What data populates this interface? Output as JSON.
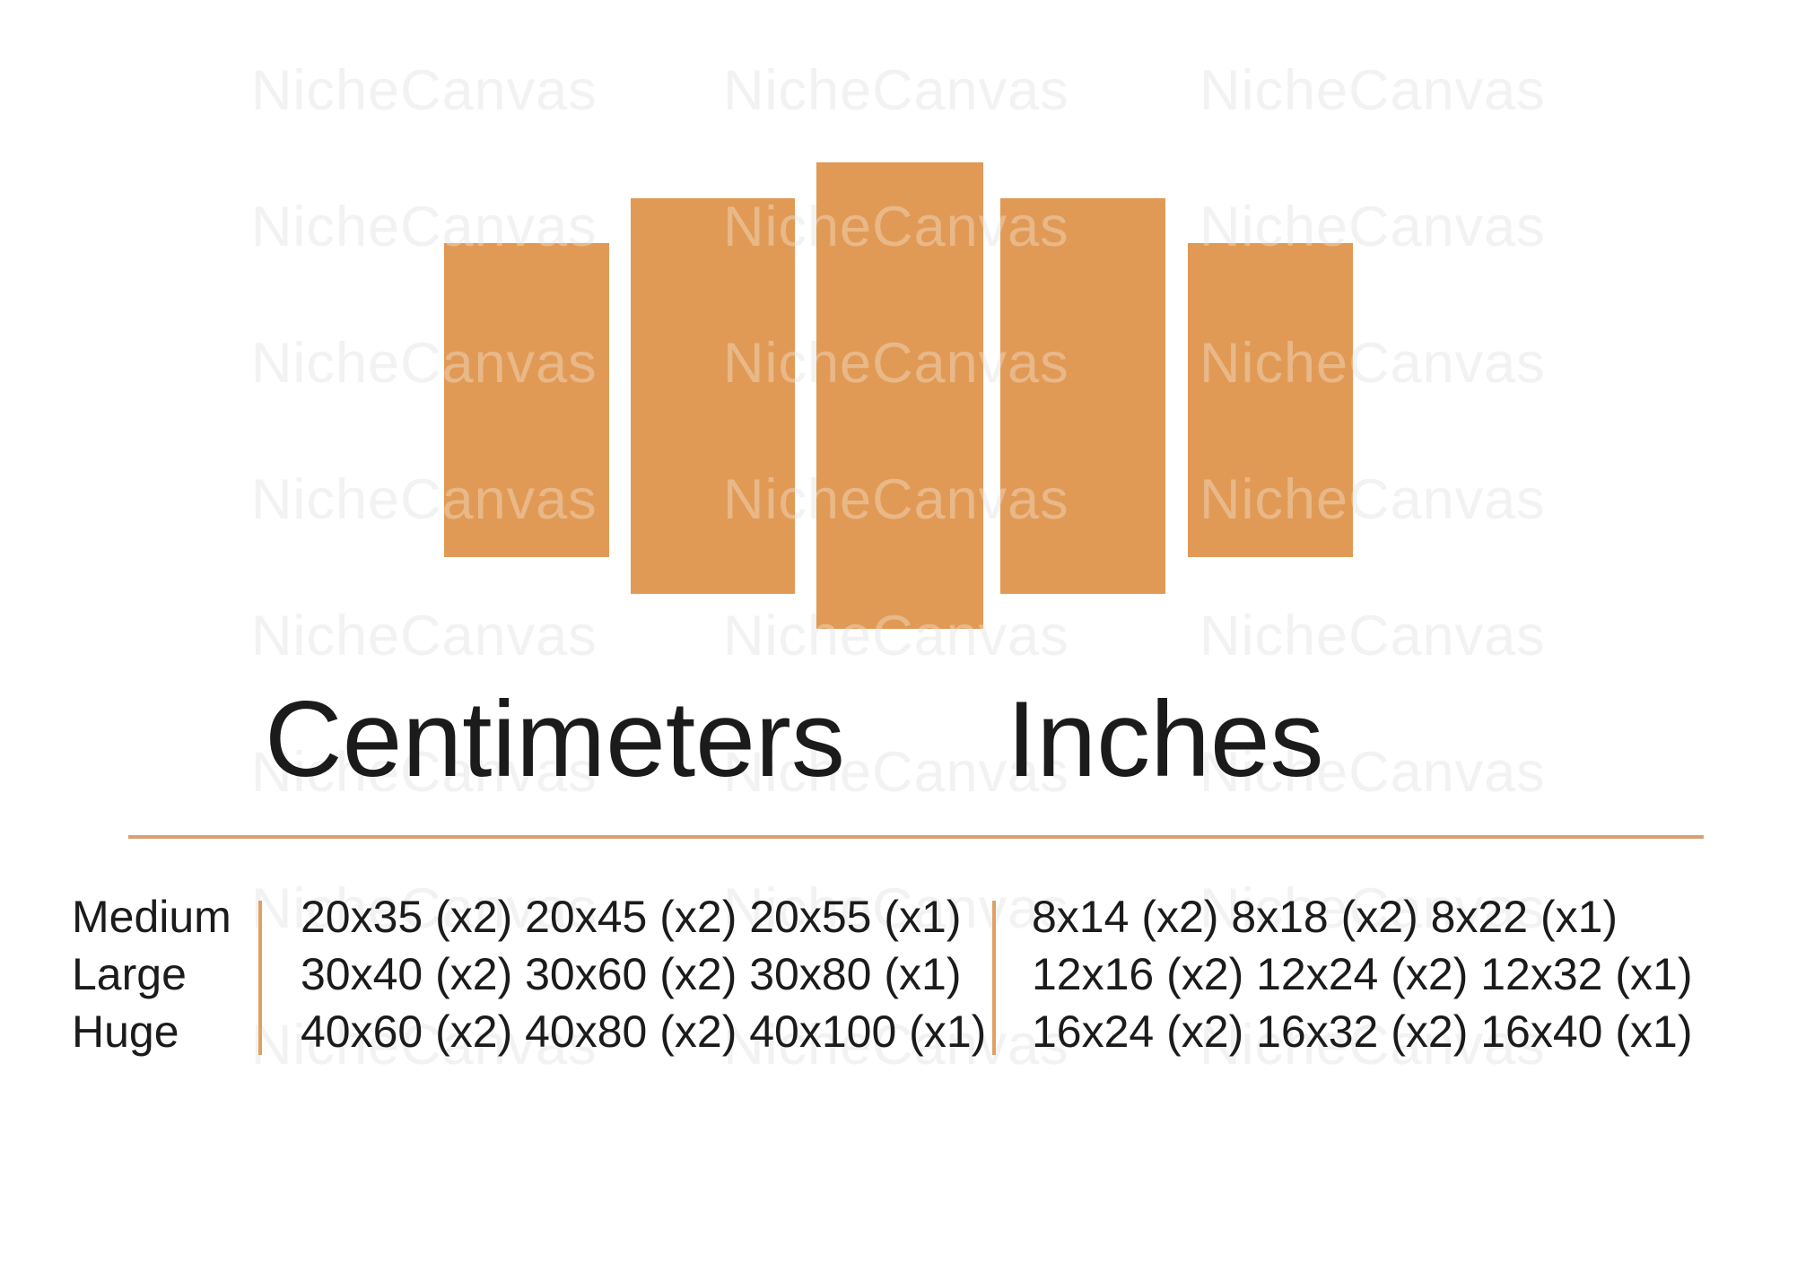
{
  "headings": {
    "centimeters": "Centimeters",
    "inches": "Inches"
  },
  "size_table": {
    "rows": [
      {
        "label": "Medium",
        "cm": "20x35 (x2) 20x45 (x2) 20x55 (x1)",
        "inches": "8x14 (x2) 8x18 (x2) 8x22 (x1)"
      },
      {
        "label": "Large",
        "cm": "30x40 (x2) 30x60 (x2) 30x80 (x1)",
        "inches": "12x16 (x2) 12x24 (x2) 12x32 (x1)"
      },
      {
        "label": "Huge",
        "cm": "40x60 (x2) 40x80 (x2) 40x100 (x1)",
        "inches": "16x24 (x2) 16x32 (x2) 16x40 (x1)"
      }
    ]
  },
  "panel_diagram": {
    "panel_count": 5
  },
  "watermark": {
    "text": "NicheCanvas"
  },
  "colors": {
    "panel-orange": "#e09a55",
    "divider-orange": "#e0a064",
    "rule-tan": "#d8a071",
    "watermark-gray": "#ececec",
    "text-black": "#1b1b1b"
  }
}
